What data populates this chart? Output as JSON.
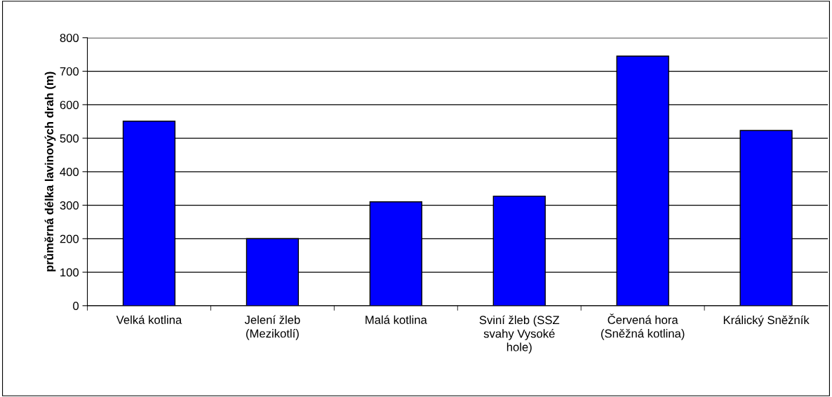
{
  "chart_data": {
    "type": "bar",
    "ylabel": "průměrná délka lavinových drah (m)",
    "categories": [
      "Velká kotlina",
      "Jelení žleb\n(Mezikotlí)",
      "Malá kotlina",
      "Sviní žleb (SSZ\nsvahy Vysoké\nhole)",
      "Červená hora\n(Sněžná kotlina)",
      "Králický Sněžník"
    ],
    "values": [
      551,
      200,
      310,
      327,
      745,
      523
    ],
    "color": "#0000ff",
    "ylim": [
      0,
      800
    ],
    "yticks": [
      0,
      100,
      200,
      300,
      400,
      500,
      600,
      700,
      800
    ],
    "grid": "y",
    "legend": false
  }
}
